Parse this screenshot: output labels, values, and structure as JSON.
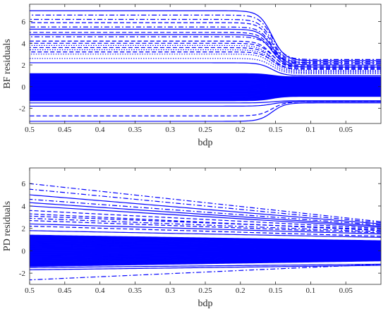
{
  "chart_data": [
    {
      "type": "line",
      "xlabel": "bdp",
      "ylabel": "BF residuals",
      "x_reversed": true,
      "xlim": [
        0.0,
        0.5
      ],
      "ylim": [
        -3.4,
        7.6
      ],
      "xticks": [
        0.5,
        0.45,
        0.4,
        0.35,
        0.3,
        0.25,
        0.2,
        0.15,
        0.1,
        0.05
      ],
      "xtick_labels": [
        "0.5",
        "0.45",
        "0.4",
        "0.35",
        "0.3",
        "0.25",
        "0.2",
        "0.15",
        "0.1",
        "0.05"
      ],
      "yticks": [
        -2,
        0,
        2,
        4,
        6
      ],
      "ytick_labels": [
        "-2",
        "0",
        "2",
        "4",
        "6"
      ],
      "grid": false,
      "line_color": "#0000ff",
      "pattern": "sigmoid",
      "transition": {
        "center": 0.155,
        "width": 0.009
      },
      "series": [
        {
          "style": "solid",
          "values_at_0.5": 7.0,
          "values_at_0": 2.4
        },
        {
          "style": "dashdot",
          "values_at_0.5": 6.6,
          "values_at_0": 2.5
        },
        {
          "style": "dashdot",
          "values_at_0.5": 6.2,
          "values_at_0": 2.3
        },
        {
          "style": "dashed",
          "values_at_0.5": 5.9,
          "values_at_0": 2.2
        },
        {
          "style": "dashdot",
          "values_at_0.5": 5.5,
          "values_at_0": 2.1
        },
        {
          "style": "solid",
          "values_at_0.5": 5.3,
          "values_at_0": 2.0
        },
        {
          "style": "dashed",
          "values_at_0.5": 5.0,
          "values_at_0": 1.9
        },
        {
          "style": "solid",
          "values_at_0.5": 4.8,
          "values_at_0": 1.8
        },
        {
          "style": "dashdot",
          "values_at_0.5": 4.6,
          "values_at_0": 2.2
        },
        {
          "style": "dashed",
          "values_at_0.5": 4.2,
          "values_at_0": 1.7
        },
        {
          "style": "dashed",
          "values_at_0.5": 4.0,
          "values_at_0": 1.8
        },
        {
          "style": "dotted",
          "values_at_0.5": 3.8,
          "values_at_0": 1.5
        },
        {
          "style": "dashed",
          "values_at_0.5": 3.6,
          "values_at_0": 1.6
        },
        {
          "style": "dotted",
          "values_at_0.5": 3.4,
          "values_at_0": 1.4
        },
        {
          "style": "dashed",
          "values_at_0.5": 3.2,
          "values_at_0": 1.6
        },
        {
          "style": "dotted",
          "values_at_0.5": 3.0,
          "values_at_0": 1.3
        },
        {
          "style": "dotted",
          "values_at_0.5": 2.6,
          "values_at_0": 1.2
        },
        {
          "style": "solid",
          "values_at_0.5": 2.2,
          "values_at_0": 1.0
        },
        {
          "style": "solid",
          "values_at_0.5": -1.5,
          "values_at_0": -1.3
        },
        {
          "style": "solid",
          "values_at_0.5": -1.8,
          "values_at_0": -1.4
        },
        {
          "style": "dashed",
          "values_at_0.5": -2.7,
          "values_at_0": -1.4
        },
        {
          "style": "solid",
          "values_at_0.5": -3.2,
          "values_at_0": -1.5
        }
      ],
      "dense_band": {
        "at_0.5": [
          -1.3,
          1.2
        ],
        "at_0": [
          -0.9,
          0.9
        ],
        "count": 60,
        "style": "solid"
      }
    },
    {
      "type": "line",
      "xlabel": "bdp",
      "ylabel": "PD residuals",
      "x_reversed": true,
      "xlim": [
        0.0,
        0.5
      ],
      "ylim": [
        -3.0,
        7.4
      ],
      "xticks": [
        0.5,
        0.45,
        0.4,
        0.35,
        0.3,
        0.25,
        0.2,
        0.15,
        0.1,
        0.05
      ],
      "xtick_labels": [
        "0.5",
        "0.45",
        "0.4",
        "0.35",
        "0.3",
        "0.25",
        "0.2",
        "0.15",
        "0.1",
        "0.05"
      ],
      "yticks": [
        -2,
        0,
        2,
        4,
        6
      ],
      "ytick_labels": [
        "-2",
        "0",
        "2",
        "4",
        "6"
      ],
      "grid": false,
      "line_color": "#0000ff",
      "pattern": "linear",
      "series": [
        {
          "style": "dashdot",
          "values_at_0.5": 6.0,
          "values_at_0": 2.6
        },
        {
          "style": "dashdot",
          "values_at_0.5": 5.5,
          "values_at_0": 2.5
        },
        {
          "style": "solid",
          "values_at_0.5": 5.0,
          "values_at_0": 2.4
        },
        {
          "style": "dashdot",
          "values_at_0.5": 4.6,
          "values_at_0": 2.3
        },
        {
          "style": "solid",
          "values_at_0.5": 4.3,
          "values_at_0": 2.2
        },
        {
          "style": "solid",
          "values_at_0.5": 4.0,
          "values_at_0": 2.1
        },
        {
          "style": "dashed",
          "values_at_0.5": 3.6,
          "values_at_0": 2.0
        },
        {
          "style": "dashed",
          "values_at_0.5": 3.3,
          "values_at_0": 1.8
        },
        {
          "style": "dashed",
          "values_at_0.5": 3.1,
          "values_at_0": 1.9
        },
        {
          "style": "dashdot",
          "values_at_0.5": 2.9,
          "values_at_0": 1.7
        },
        {
          "style": "dashed",
          "values_at_0.5": 2.7,
          "values_at_0": 1.6
        },
        {
          "style": "solid",
          "values_at_0.5": 2.4,
          "values_at_0": 1.5
        },
        {
          "style": "dashed",
          "values_at_0.5": 2.2,
          "values_at_0": 1.3
        },
        {
          "style": "solid",
          "values_at_0.5": 1.8,
          "values_at_0": 1.2
        },
        {
          "style": "solid",
          "values_at_0.5": -1.5,
          "values_at_0": -1.2
        },
        {
          "style": "solid",
          "values_at_0.5": -1.7,
          "values_at_0": -1.3
        },
        {
          "style": "dashdot",
          "values_at_0.5": -2.6,
          "values_at_0": -1.2
        }
      ],
      "dense_band": {
        "at_0.5": [
          -1.4,
          1.4
        ],
        "at_0": [
          -0.9,
          0.9
        ],
        "count": 60,
        "style": "solid"
      }
    }
  ]
}
